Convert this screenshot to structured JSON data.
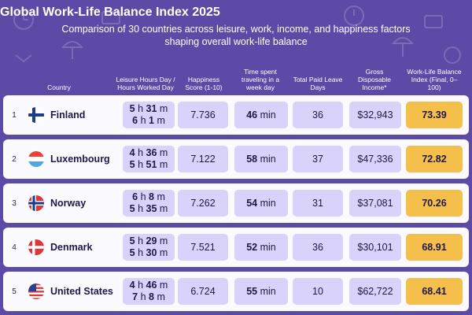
{
  "title": "Global Work-Life Balance Index 2025",
  "subtitle": "Comparison of 30 countries across leisure, work, income, and happiness factors shaping overall work-life balance",
  "columns": {
    "country": "Country",
    "leisure": "Leisure Hours Day / Hours Worked Day",
    "happiness": "Happiness Score (1-10)",
    "travel": "Time spent traveling in a week day",
    "leave": "Total Paid Leave Days",
    "income": "Gross Disposable Income*",
    "index": "Work-Life Balance Index (Final, 0–100)"
  },
  "units": {
    "h": "h",
    "m": "m",
    "min": "min"
  },
  "rows": [
    {
      "rank": "1",
      "country": "Finland",
      "flag": "finland-flag-icon",
      "leisure_h": "5",
      "leisure_m": "31",
      "work_h": "6",
      "work_m": "1",
      "happiness": "7.736",
      "travel": "46",
      "leave": "36",
      "income": "$32,943",
      "index": "73.39"
    },
    {
      "rank": "2",
      "country": "Luxembourg",
      "flag": "luxembourg-flag-icon",
      "leisure_h": "4",
      "leisure_m": "36",
      "work_h": "5",
      "work_m": "51",
      "happiness": "7.122",
      "travel": "58",
      "leave": "37",
      "income": "$47,336",
      "index": "72.82"
    },
    {
      "rank": "3",
      "country": "Norway",
      "flag": "norway-flag-icon",
      "leisure_h": "6",
      "leisure_m": "8",
      "work_h": "5",
      "work_m": "35",
      "happiness": "7.262",
      "travel": "54",
      "leave": "31",
      "income": "$37,081",
      "index": "70.26"
    },
    {
      "rank": "4",
      "country": "Denmark",
      "flag": "denmark-flag-icon",
      "leisure_h": "5",
      "leisure_m": "29",
      "work_h": "5",
      "work_m": "30",
      "happiness": "7.521",
      "travel": "52",
      "leave": "36",
      "income": "$30,101",
      "index": "68.91"
    },
    {
      "rank": "5",
      "country": "United States",
      "flag": "usa-flag-icon",
      "leisure_h": "4",
      "leisure_m": "46",
      "work_h": "7",
      "work_m": "8",
      "happiness": "6.724",
      "travel": "55",
      "leave": "10",
      "income": "$62,722",
      "index": "68.41"
    }
  ]
}
